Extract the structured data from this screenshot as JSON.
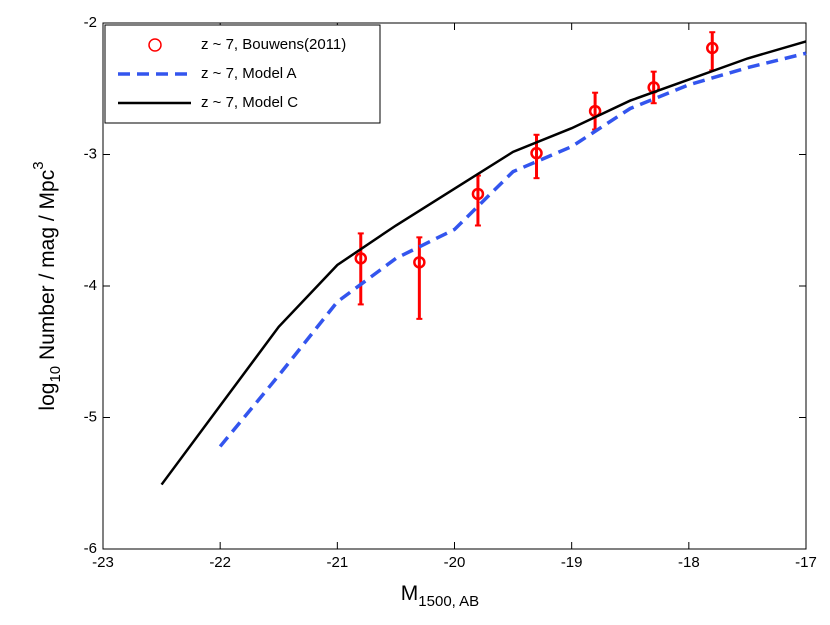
{
  "chart_data": {
    "type": "line",
    "xlabel": {
      "main": "M",
      "sub": "1500, AB"
    },
    "ylabel": {
      "base": "log",
      "sub": "10",
      "main": " Number / mag / Mpc",
      "sup": "3"
    },
    "xlim": [
      -23,
      -17
    ],
    "xticks": [
      -23,
      -22,
      -21,
      -20,
      -19,
      -18,
      -17
    ],
    "ylim": [
      -6,
      -2
    ],
    "yticks": [
      -6,
      -5,
      -4,
      -3,
      -2
    ],
    "legend": "upper-left",
    "series": [
      {
        "name": "z ~ 7, Bouwens(2011)",
        "color": "#ff0000",
        "style": "marker",
        "x": [
          -20.8,
          -20.3,
          -19.8,
          -19.3,
          -18.8,
          -18.3,
          -17.8
        ],
        "values": [
          -3.79,
          -3.82,
          -3.3,
          -2.99,
          -2.67,
          -2.49,
          -2.19
        ],
        "err_upper": [
          0.19,
          0.19,
          0.14,
          0.14,
          0.14,
          0.12,
          0.12
        ],
        "err_lower": [
          0.35,
          0.43,
          0.24,
          0.19,
          0.14,
          0.12,
          0.17
        ]
      },
      {
        "name": "z ~ 7, Model A",
        "color": "#3355ee",
        "style": "dashed",
        "x": [
          -22,
          -21.5,
          -21,
          -20.5,
          -20,
          -19.5,
          -19,
          -18.5,
          -18,
          -17.5,
          -17
        ],
        "values": [
          -5.22,
          -4.68,
          -4.12,
          -3.79,
          -3.57,
          -3.13,
          -2.94,
          -2.65,
          -2.47,
          -2.34,
          -2.23
        ]
      },
      {
        "name": "z ~ 7, Model C",
        "color": "#000000",
        "style": "solid",
        "x": [
          -22.5,
          -22,
          -21.5,
          -21,
          -20.5,
          -20,
          -19.5,
          -19,
          -18.5,
          -18,
          -17.5,
          -17
        ],
        "values": [
          -5.51,
          -4.91,
          -4.31,
          -3.84,
          -3.54,
          -3.26,
          -2.98,
          -2.8,
          -2.59,
          -2.43,
          -2.27,
          -2.14
        ]
      }
    ]
  }
}
